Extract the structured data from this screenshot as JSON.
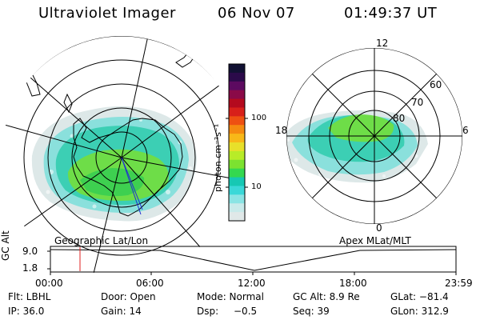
{
  "header": {
    "instrument": "Ultraviolet Imager",
    "date": "06 Nov 07",
    "time": "01:49:37 UT"
  },
  "panels": {
    "left_label": "Geographic Lat/Lon",
    "right_label": "Apex MLat/MLT"
  },
  "polar_labels": {
    "top": "12",
    "left": "18",
    "right": "6",
    "bottom": "0",
    "lat60": "60",
    "lat70": "70",
    "lat80": "80"
  },
  "colorbar": {
    "unit": "photon cm⁻²s⁻¹",
    "tick_high": "100",
    "tick_low": "10",
    "colors": [
      "#111133",
      "#2b0a4a",
      "#5c0a60",
      "#8a0a48",
      "#b40a1e",
      "#d8201a",
      "#ee5012",
      "#f58a10",
      "#f8b818",
      "#e8e02a",
      "#b8ec28",
      "#7ce230",
      "#34d850",
      "#16c8b4",
      "#3ad8d8",
      "#8ae4e4",
      "#c8eaea",
      "#e0e8e8"
    ]
  },
  "timeline": {
    "axis_label": "GC Alt",
    "y_high": "9.0",
    "y_low": "1.8",
    "ticks": [
      "00:00",
      "06:00",
      "12:00",
      "18:00",
      "23:59"
    ],
    "marker_time": "01:49",
    "marker_color": "#e02020"
  },
  "info": {
    "flt": "Flt: LBHL",
    "door": "Door: Open",
    "mode": "Mode: Normal",
    "gc_alt": "GC Alt: 8.9 Re",
    "glat": "GLat: −81.4",
    "ip": "IP: 36.0",
    "gain": "Gain: 14",
    "dsp_label": "Dsp:",
    "dsp_value": "−0.5",
    "seq": "Seq: 39",
    "glon": "GLon: 312.9"
  }
}
